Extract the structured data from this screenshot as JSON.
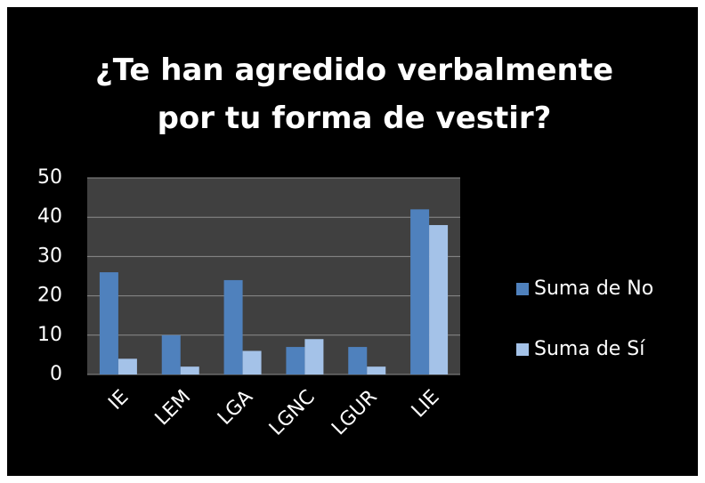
{
  "chart_data": {
    "type": "bar",
    "title": "¿Te han agredido verbalmente por tu forma de vestir?",
    "categories": [
      "IE",
      "LEM",
      "LGA",
      "LGNC",
      "LGUR",
      "LIE"
    ],
    "series": [
      {
        "name": "Suma de No",
        "color": "#4f81bd",
        "values": [
          26,
          10,
          24,
          7,
          7,
          42
        ]
      },
      {
        "name": "Suma de Sí",
        "color": "#a4c2e8",
        "values": [
          4,
          2,
          6,
          9,
          2,
          38
        ]
      }
    ],
    "ylim": [
      0,
      50
    ],
    "yticks": [
      0,
      10,
      20,
      30,
      40,
      50
    ],
    "grid": true,
    "legend": "right"
  }
}
